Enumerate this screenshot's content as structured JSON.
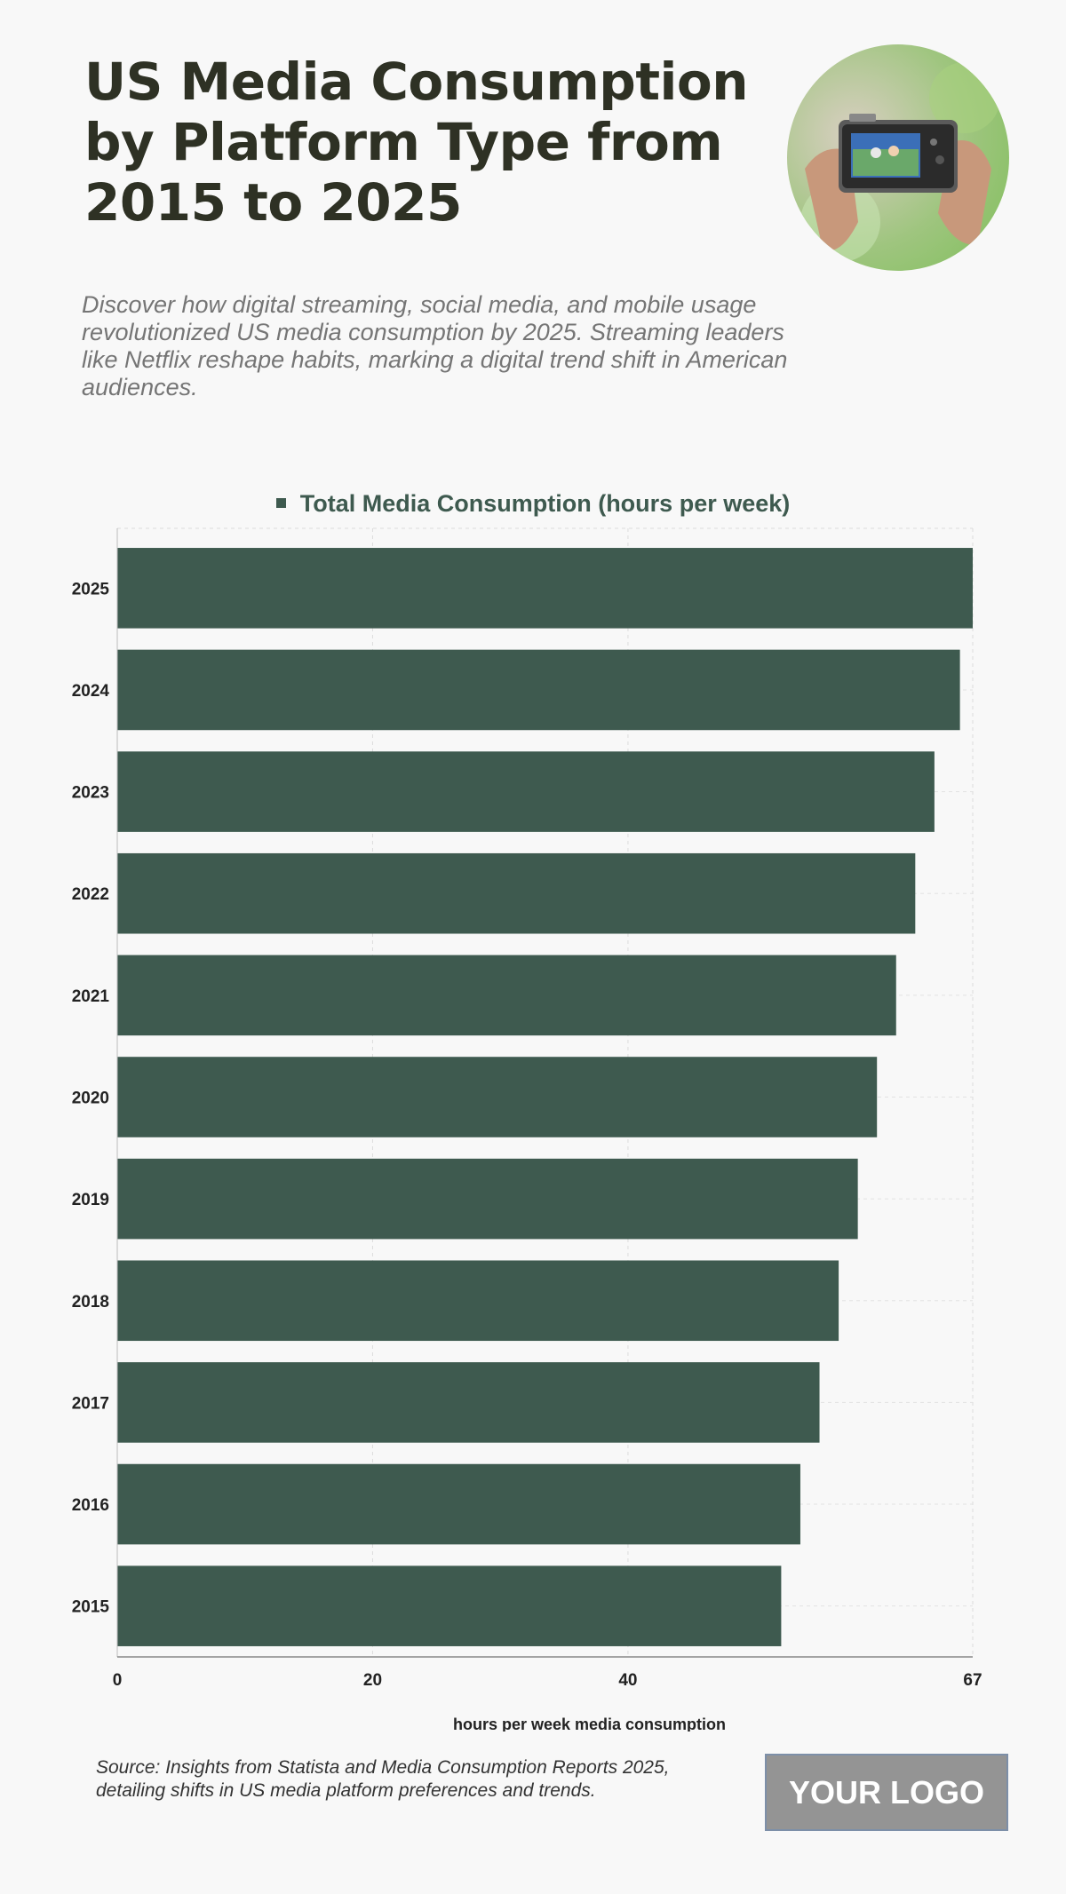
{
  "title": "US Media Consumption by Platform Type from 2015 to 2025",
  "subtitle": "Discover how digital streaming, social media, and mobile usage revolutionized US media consumption by 2025. Streaming leaders like Netflix reshape habits, marking a digital trend shift in American audiences.",
  "source": "Source: Insights from Statista and Media Consumption Reports 2025, detailing shifts in US media platform preferences and trends.",
  "logo_text": "YOUR LOGO",
  "colors": {
    "bar": "#3e5a4f",
    "title": "#2e3124",
    "background": "#f8f8f8"
  },
  "chart_data": {
    "type": "bar",
    "orientation": "horizontal",
    "legend": "Total Media Consumption (hours per week)",
    "xlabel": "hours per week media consumption",
    "xlim": [
      0,
      67
    ],
    "xticks": [
      "0",
      "20",
      "40",
      "67"
    ],
    "grid": true,
    "categories": [
      "2025",
      "2024",
      "2023",
      "2022",
      "2021",
      "2020",
      "2019",
      "2018",
      "2017",
      "2016",
      "2015"
    ],
    "series": [
      {
        "name": "Total Media Consumption (hours per week)",
        "values": [
          67,
          66,
          64,
          62.5,
          61,
          59.5,
          58,
          56.5,
          55,
          53.5,
          52
        ]
      }
    ]
  }
}
